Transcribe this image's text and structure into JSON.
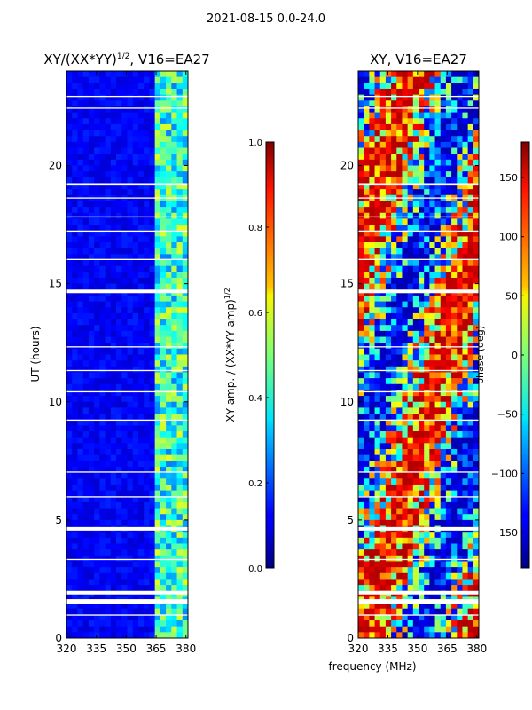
{
  "suptitle": "2021-08-15 0.0-24.0",
  "colors": {
    "frame": "#000000",
    "gap": "#ffffff"
  },
  "chart_data": [
    {
      "type": "heatmap",
      "title": "XY/(XX*YY)^{1/2}, V16=EA27",
      "title_main": "XY/(XX*YY)",
      "title_sup": "1/2",
      "title_tail": ", V16=EA27",
      "xlabel": "",
      "ylabel": "UT (hours)",
      "xlim": [
        320,
        381
      ],
      "ylim": [
        0,
        24
      ],
      "xticks": [
        320,
        335,
        350,
        365,
        380
      ],
      "yticks": [
        0,
        5,
        10,
        15,
        20
      ],
      "colormap": "jet",
      "colorbar": {
        "label": "XY amp. / (XX*YY amp)^{1/2}",
        "label_main": "XY amp. / (XX*YY amp)",
        "label_sup": "1/2",
        "range": [
          0.0,
          1.0
        ],
        "ticks": [
          "0.0",
          "0.2",
          "0.4",
          "0.6",
          "0.8",
          "1.0"
        ],
        "tick_values": [
          0.0,
          0.2,
          0.4,
          0.6,
          0.8,
          1.0
        ]
      },
      "bright_band_mhz": [
        364,
        380
      ],
      "flagged_intervals_hours": [
        [
          1.45,
          1.65
        ],
        [
          1.85,
          2.0
        ],
        [
          4.55,
          4.7
        ],
        [
          14.6,
          14.75
        ],
        [
          19.15,
          19.25
        ],
        [
          0.95,
          1.0
        ],
        [
          3.3,
          3.35
        ],
        [
          5.95,
          6.0
        ],
        [
          7.0,
          7.05
        ],
        [
          9.2,
          9.25
        ],
        [
          10.4,
          10.45
        ],
        [
          11.3,
          11.35
        ],
        [
          12.3,
          12.35
        ],
        [
          16.0,
          16.05
        ],
        [
          17.2,
          17.25
        ],
        [
          17.8,
          17.85
        ],
        [
          18.6,
          18.65
        ],
        [
          22.4,
          22.45
        ],
        [
          22.9,
          22.95
        ]
      ]
    },
    {
      "type": "heatmap",
      "title": "XY, V16=EA27",
      "xlabel": "frequency (MHz)",
      "ylabel": "",
      "xlim": [
        320,
        381
      ],
      "ylim": [
        0,
        24
      ],
      "xticks": [
        320,
        335,
        350,
        365,
        380
      ],
      "yticks": [
        0,
        5,
        10,
        15,
        20
      ],
      "colormap": "jet",
      "colorbar": {
        "label": "phase (deg)",
        "range": [
          -180,
          180
        ],
        "ticks": [
          "−150",
          "−100",
          "−50",
          "0",
          "50",
          "100",
          "150"
        ],
        "tick_values": [
          -150,
          -100,
          -50,
          0,
          50,
          100,
          150
        ]
      },
      "flagged_intervals_hours": [
        [
          1.45,
          1.65
        ],
        [
          1.85,
          2.0
        ],
        [
          4.55,
          4.7
        ],
        [
          14.6,
          14.75
        ],
        [
          19.15,
          19.25
        ],
        [
          0.95,
          1.0
        ],
        [
          3.3,
          3.35
        ],
        [
          5.95,
          6.0
        ],
        [
          7.0,
          7.05
        ],
        [
          9.2,
          9.25
        ],
        [
          10.4,
          10.45
        ],
        [
          11.3,
          11.35
        ],
        [
          12.3,
          12.35
        ],
        [
          16.0,
          16.05
        ],
        [
          17.2,
          17.25
        ],
        [
          17.8,
          17.85
        ],
        [
          18.6,
          18.65
        ],
        [
          22.4,
          22.45
        ],
        [
          22.9,
          22.95
        ]
      ]
    }
  ]
}
